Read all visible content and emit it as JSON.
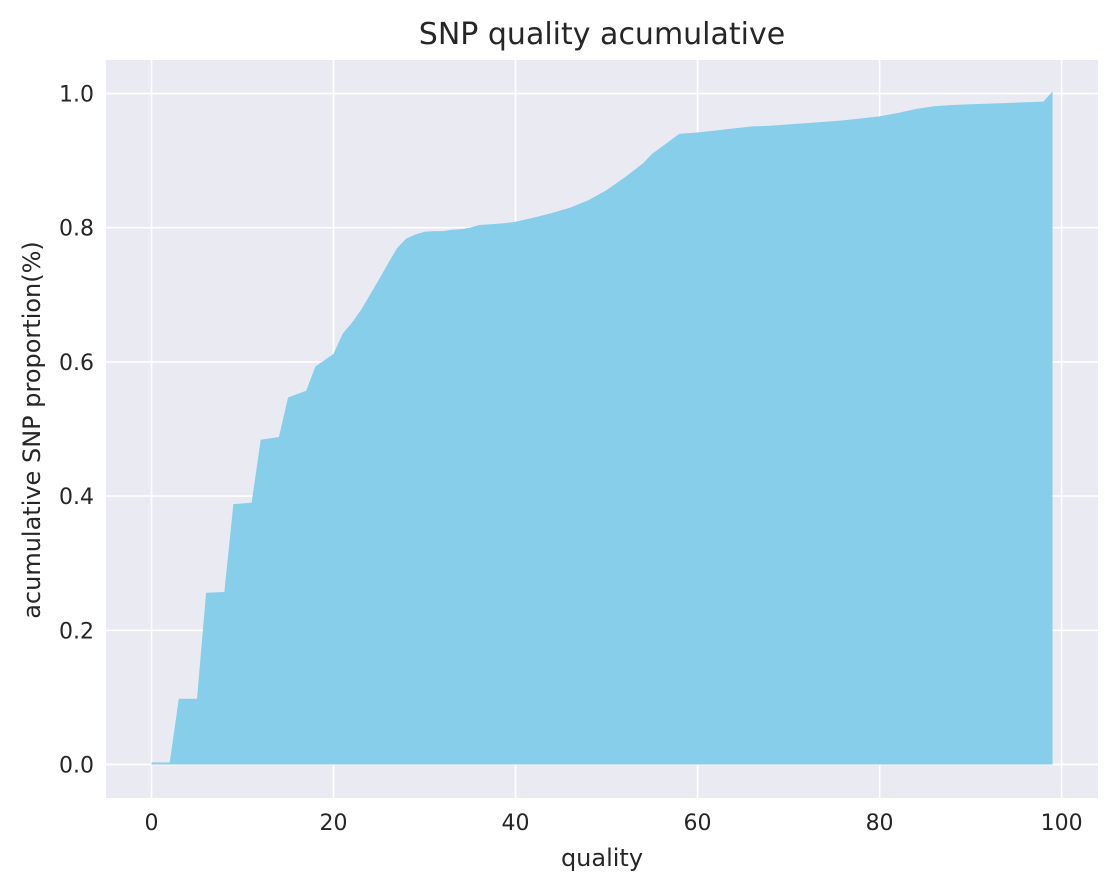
{
  "chart_data": {
    "type": "area",
    "title": "SNP quality acumulative",
    "xlabel": "quality",
    "ylabel": "acumulative SNP proportion(%)",
    "xlim": [
      -5,
      104
    ],
    "ylim": [
      -0.05,
      1.05
    ],
    "x_ticks": [
      0,
      20,
      40,
      60,
      80,
      100
    ],
    "y_ticks": [
      0.0,
      0.2,
      0.4,
      0.6,
      0.8,
      1.0
    ],
    "x_tick_labels": [
      "0",
      "20",
      "40",
      "60",
      "80",
      "100"
    ],
    "y_tick_labels": [
      "0.0",
      "0.2",
      "0.4",
      "0.6",
      "0.8",
      "1.0"
    ],
    "grid": true,
    "style": {
      "background": "#eaeaf2",
      "grid_color": "#ffffff",
      "fill_color": "#87ceeb"
    },
    "series": [
      {
        "x": [
          0,
          2,
          3,
          5,
          6,
          8,
          9,
          11,
          12,
          14,
          15,
          17,
          18,
          20,
          21,
          22,
          23,
          24,
          25,
          26,
          27,
          28,
          29,
          30,
          31,
          32,
          33,
          34,
          35,
          36,
          37,
          38,
          39,
          40,
          42,
          44,
          46,
          48,
          50,
          52,
          54,
          55,
          56,
          58,
          60,
          62,
          64,
          66,
          68,
          70,
          72,
          74,
          76,
          78,
          80,
          82,
          84,
          86,
          88,
          90,
          92,
          94,
          96,
          98,
          99
        ],
        "y": [
          0.003,
          0.003,
          0.098,
          0.098,
          0.256,
          0.257,
          0.388,
          0.39,
          0.484,
          0.488,
          0.547,
          0.557,
          0.593,
          0.612,
          0.642,
          0.658,
          0.677,
          0.7,
          0.723,
          0.747,
          0.77,
          0.784,
          0.79,
          0.794,
          0.795,
          0.795,
          0.797,
          0.798,
          0.8,
          0.804,
          0.805,
          0.806,
          0.807,
          0.809,
          0.815,
          0.822,
          0.83,
          0.841,
          0.856,
          0.875,
          0.896,
          0.91,
          0.92,
          0.94,
          0.942,
          0.945,
          0.948,
          0.951,
          0.952,
          0.954,
          0.956,
          0.958,
          0.96,
          0.963,
          0.966,
          0.971,
          0.977,
          0.981,
          0.983,
          0.984,
          0.985,
          0.986,
          0.987,
          0.988,
          1.003
        ]
      }
    ]
  }
}
